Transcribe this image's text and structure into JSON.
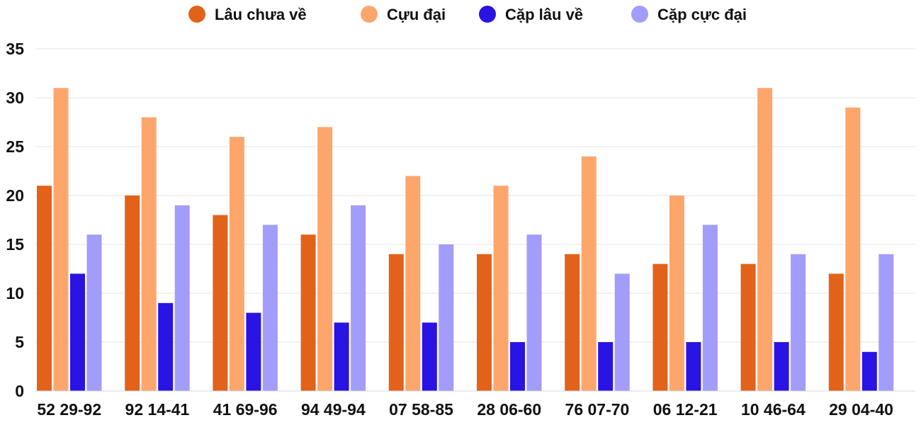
{
  "chart_data": {
    "type": "bar",
    "title": "",
    "xlabel": "",
    "ylabel": "",
    "ylim": [
      0,
      35
    ],
    "yticks": [
      0,
      5,
      10,
      15,
      20,
      25,
      30,
      35
    ],
    "grid": true,
    "legend_position": "top",
    "categories": [
      "52 29-92",
      "92 14-41",
      "41 69-96",
      "94 49-94",
      "07 58-85",
      "28 06-60",
      "76 07-70",
      "06 12-21",
      "10 46-64",
      "29 04-40"
    ],
    "series": [
      {
        "name": "Lâu chưa về",
        "color": "#e2621a",
        "values": [
          21,
          20,
          18,
          16,
          14,
          14,
          14,
          13,
          13,
          12
        ]
      },
      {
        "name": "Cựu đại",
        "color": "#fda66c",
        "values": [
          31,
          28,
          26,
          27,
          22,
          21,
          24,
          20,
          31,
          29
        ]
      },
      {
        "name": "Cặp lâu về",
        "color": "#2a14e3",
        "values": [
          12,
          9,
          8,
          7,
          7,
          5,
          5,
          5,
          5,
          4
        ]
      },
      {
        "name": "Cặp cực đại",
        "color": "#a29dfb",
        "values": [
          16,
          19,
          17,
          19,
          15,
          16,
          12,
          17,
          14,
          14
        ]
      }
    ]
  }
}
